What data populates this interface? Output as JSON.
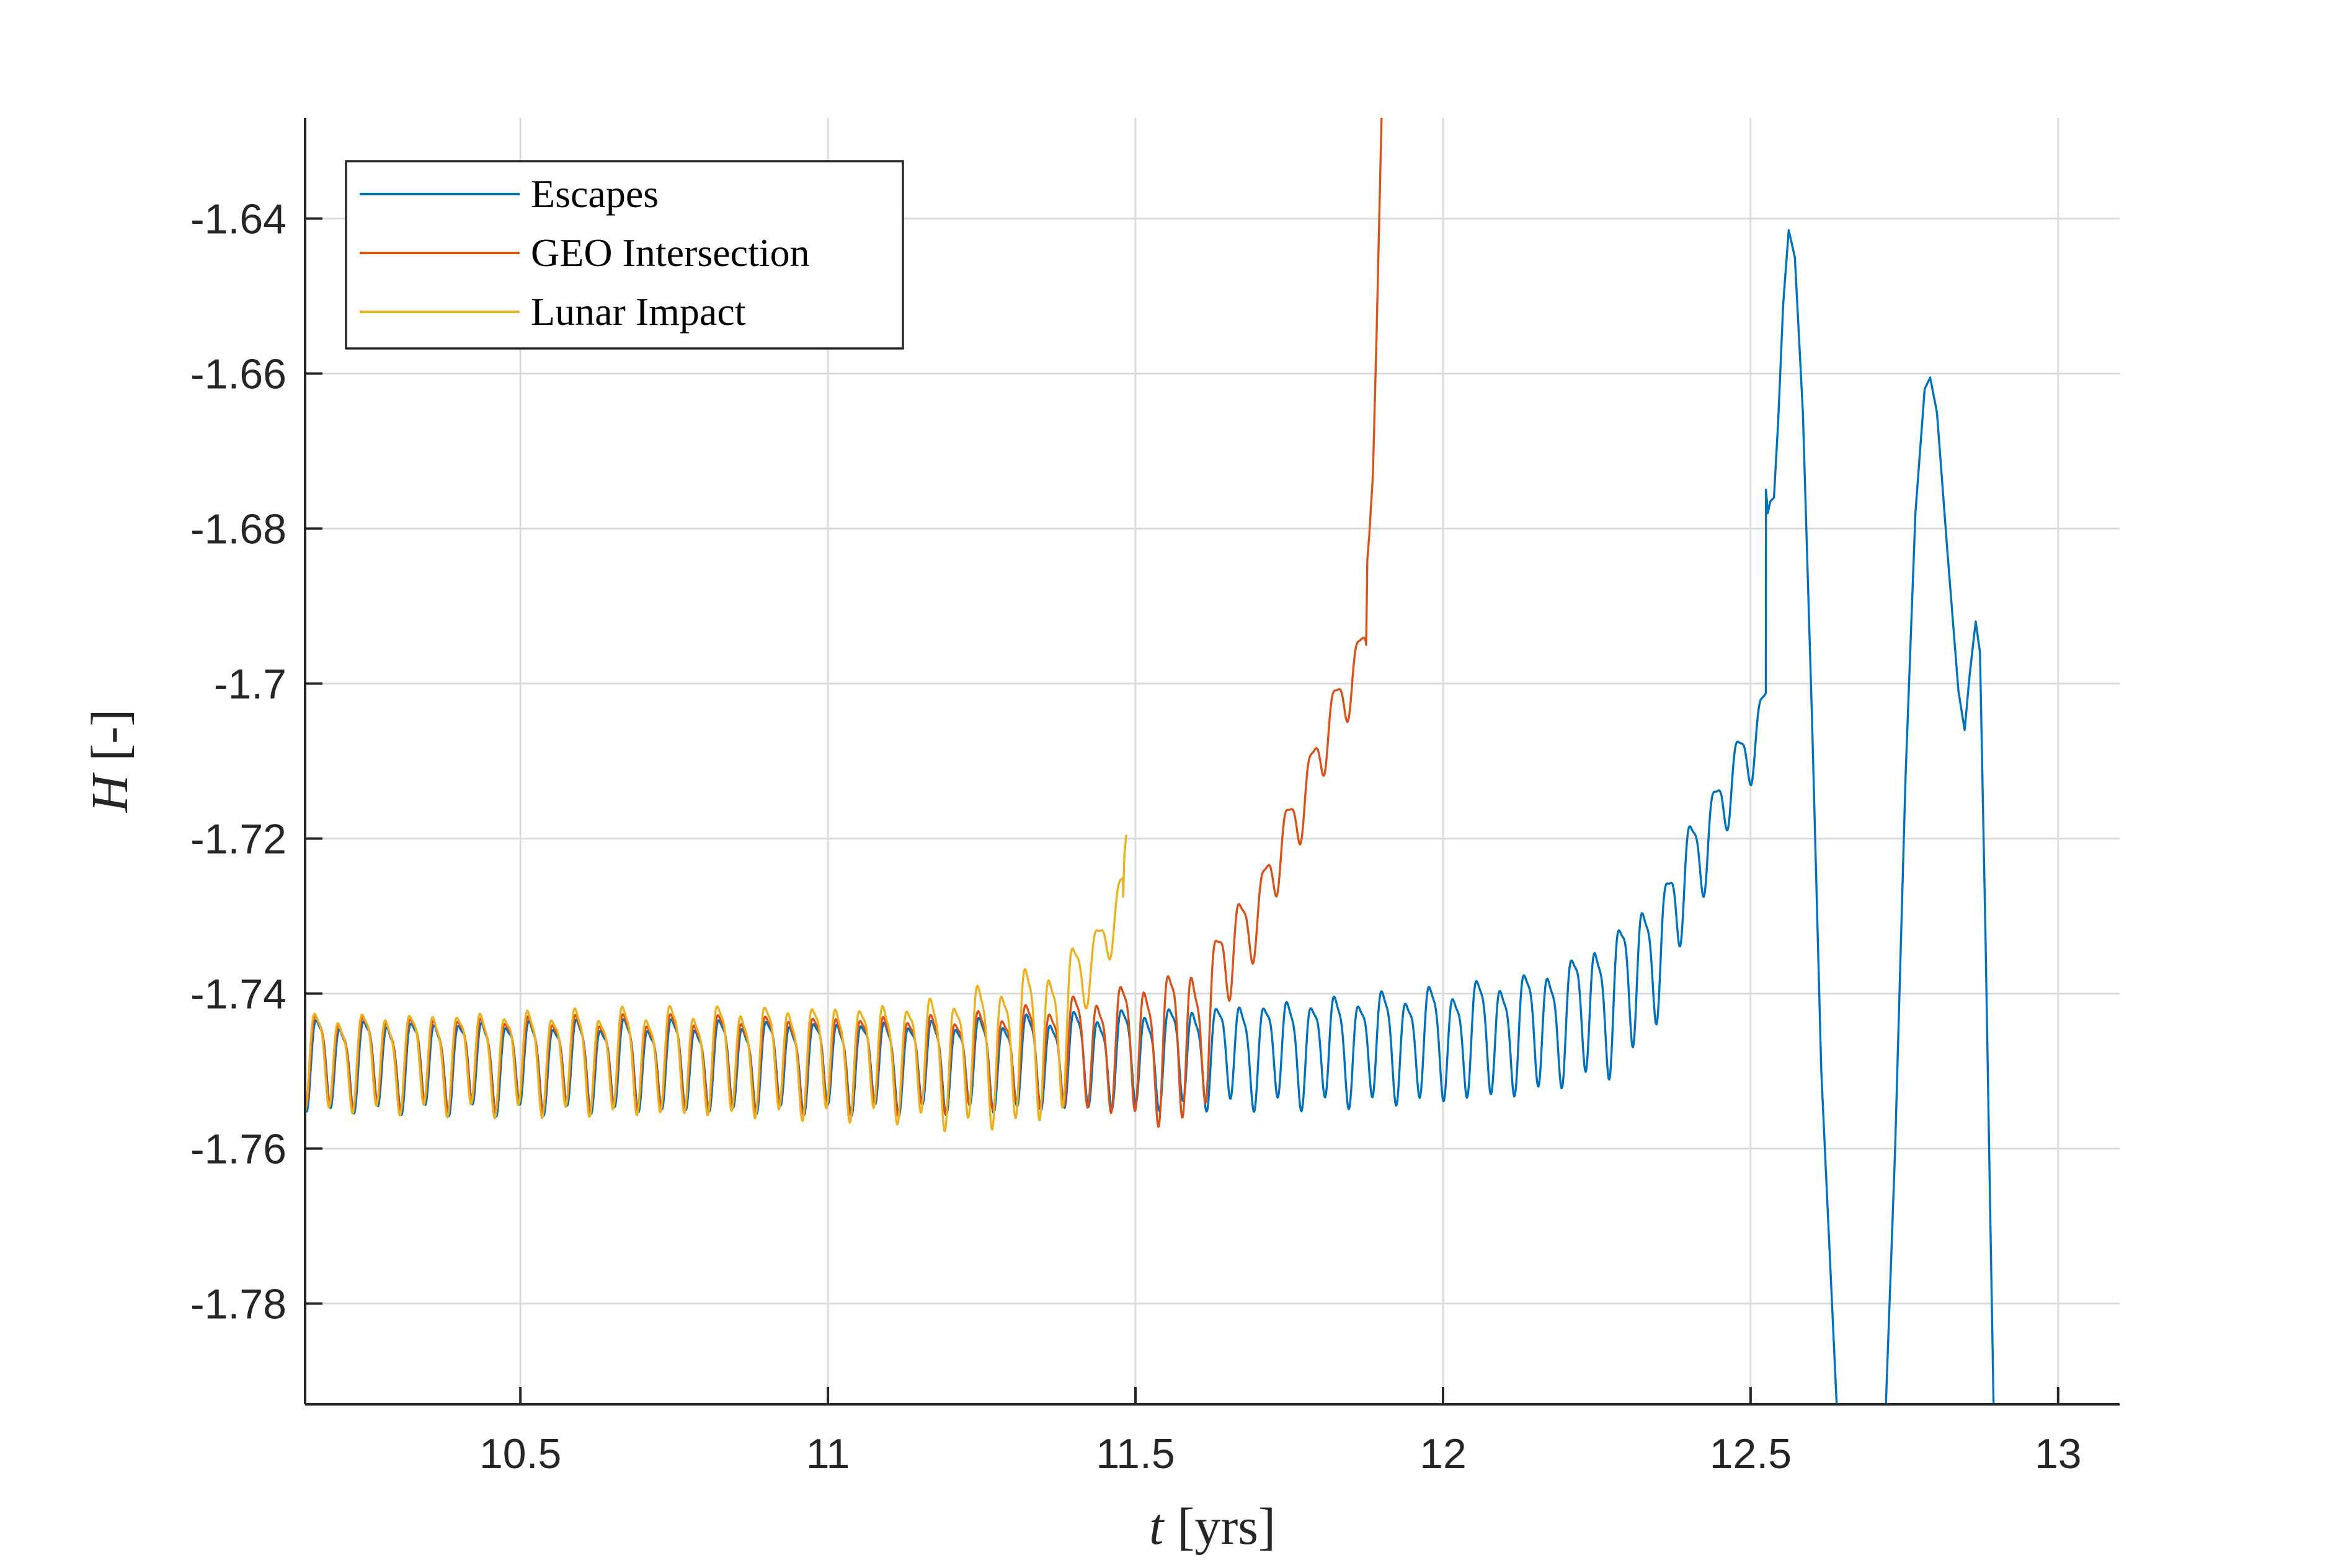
{
  "chart_data": {
    "type": "line",
    "title": "",
    "xlabel_symbol": "t",
    "xlabel_unit": "[yrs]",
    "ylabel_symbol": "H",
    "ylabel_unit": "[-]",
    "xlim": [
      10.15,
      13.1
    ],
    "ylim": [
      -1.793,
      -1.627
    ],
    "xticks": [
      10.5,
      11,
      11.5,
      12,
      12.5,
      13
    ],
    "xtick_labels": [
      "10.5",
      "11",
      "11.5",
      "12",
      "12.5",
      "13"
    ],
    "yticks": [
      -1.64,
      -1.66,
      -1.68,
      -1.7,
      -1.72,
      -1.74,
      -1.76,
      -1.78
    ],
    "ytick_labels": [
      "-1.64",
      "-1.66",
      "-1.68",
      "-1.7",
      "-1.72",
      "-1.74",
      "-1.76",
      "-1.78"
    ],
    "grid": true,
    "legend_position": "top-left",
    "series": [
      {
        "name": "Escapes",
        "color": "#0072BD",
        "anchors": [
          [
            10.15,
            -1.7485
          ],
          [
            11.2,
            -1.7485
          ],
          [
            11.5,
            -1.7475
          ],
          [
            11.8,
            -1.7465
          ],
          [
            12.0,
            -1.7455
          ],
          [
            12.15,
            -1.744
          ],
          [
            12.25,
            -1.741
          ],
          [
            12.32,
            -1.737
          ],
          [
            12.36,
            -1.732
          ],
          [
            12.4,
            -1.724
          ],
          [
            12.45,
            -1.716
          ],
          [
            12.5,
            -1.708
          ],
          [
            12.525,
            -1.703
          ]
        ],
        "amp_anchors": [
          [
            10.15,
            0.0052
          ],
          [
            11.2,
            0.0052
          ],
          [
            11.6,
            0.0058
          ],
          [
            12.0,
            0.0065
          ],
          [
            12.2,
            0.007
          ],
          [
            12.3,
            0.0085
          ],
          [
            12.36,
            0.007
          ],
          [
            12.45,
            0.0045
          ],
          [
            12.525,
            0.0035
          ]
        ],
        "period_yrs": 0.0385,
        "phase": 0.4,
        "tail": [
          [
            12.525,
            -1.675
          ],
          [
            12.528,
            -1.678
          ],
          [
            12.532,
            -1.6765
          ],
          [
            12.538,
            -1.676
          ],
          [
            12.545,
            -1.666
          ],
          [
            12.553,
            -1.651
          ],
          [
            12.562,
            -1.6415
          ],
          [
            12.572,
            -1.645
          ],
          [
            12.585,
            -1.665
          ],
          [
            12.6,
            -1.705
          ],
          [
            12.615,
            -1.75
          ],
          [
            12.64,
            -1.8
          ],
          [
            12.72,
            -1.8
          ],
          [
            12.735,
            -1.76
          ],
          [
            12.752,
            -1.712
          ],
          [
            12.768,
            -1.678
          ],
          [
            12.783,
            -1.662
          ],
          [
            12.792,
            -1.6605
          ],
          [
            12.803,
            -1.665
          ],
          [
            12.82,
            -1.683
          ],
          [
            12.838,
            -1.701
          ],
          [
            12.848,
            -1.706
          ],
          [
            12.856,
            -1.699
          ],
          [
            12.866,
            -1.692
          ],
          [
            12.873,
            -1.696
          ],
          [
            12.882,
            -1.733
          ],
          [
            12.89,
            -1.77
          ],
          [
            12.895,
            -1.8
          ]
        ]
      },
      {
        "name": "GEO Intersection",
        "color": "#D95319",
        "anchors": [
          [
            10.15,
            -1.748
          ],
          [
            11.2,
            -1.748
          ],
          [
            11.35,
            -1.747
          ],
          [
            11.5,
            -1.746
          ],
          [
            11.6,
            -1.7455
          ],
          [
            11.65,
            -1.735
          ],
          [
            11.7,
            -1.729
          ],
          [
            11.75,
            -1.719
          ],
          [
            11.8,
            -1.709
          ],
          [
            11.85,
            -1.699
          ],
          [
            11.875,
            -1.695
          ]
        ],
        "amp_anchors": [
          [
            10.15,
            0.0052
          ],
          [
            11.3,
            0.0055
          ],
          [
            11.45,
            0.0068
          ],
          [
            11.6,
            0.0095
          ],
          [
            11.64,
            0.006
          ],
          [
            11.7,
            0.004
          ],
          [
            11.875,
            0.0035
          ]
        ],
        "period_yrs": 0.0385,
        "phase": 0.6,
        "tail": [
          [
            11.875,
            -1.695
          ],
          [
            11.877,
            -1.684
          ],
          [
            11.88,
            -1.681
          ],
          [
            11.886,
            -1.673
          ],
          [
            11.892,
            -1.655
          ],
          [
            11.9,
            -1.627
          ]
        ]
      },
      {
        "name": "Lunar Impact",
        "color": "#EDB120",
        "anchors": [
          [
            10.15,
            -1.748
          ],
          [
            11.2,
            -1.7475
          ],
          [
            11.3,
            -1.746
          ],
          [
            11.38,
            -1.744
          ],
          [
            11.42,
            -1.737
          ],
          [
            11.46,
            -1.731
          ],
          [
            11.48,
            -1.7275
          ]
        ],
        "amp_anchors": [
          [
            10.15,
            0.0055
          ],
          [
            11.1,
            0.0065
          ],
          [
            11.3,
            0.0085
          ],
          [
            11.38,
            0.009
          ],
          [
            11.42,
            0.004
          ],
          [
            11.48,
            0.003
          ]
        ],
        "period_yrs": 0.0385,
        "phase": 0.8,
        "tail": [
          [
            11.48,
            -1.7275
          ],
          [
            11.482,
            -1.722
          ],
          [
            11.485,
            -1.7195
          ]
        ]
      }
    ]
  }
}
